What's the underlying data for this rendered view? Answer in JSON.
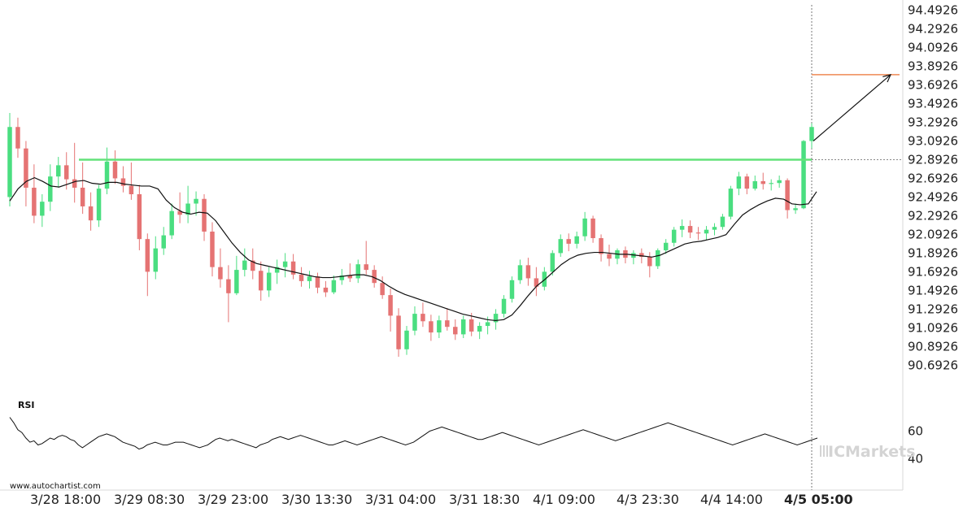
{
  "chart_data": [
    {
      "type": "candlestick",
      "title": "",
      "y_ticks": [
        "94.4926",
        "94.2926",
        "94.0926",
        "93.8926",
        "93.6926",
        "93.4926",
        "93.2926",
        "93.0926",
        "92.8926",
        "92.6926",
        "92.4926",
        "92.2926",
        "92.0926",
        "91.8926",
        "91.6926",
        "91.4926",
        "91.2926",
        "91.0926",
        "90.8926",
        "90.6926"
      ],
      "ylim": [
        90.53,
        94.55
      ],
      "x_ticks": [
        "3/28 18:00",
        "3/29 08:30",
        "3/29 23:00",
        "3/30 13:30",
        "3/31 04:00",
        "3/31 18:30",
        "4/1 09:00",
        "4/3 23:30",
        "4/4 14:00",
        "4/5 05:00"
      ],
      "candles": [
        [
          92.4926,
          93.3926,
          92.3926,
          93.2426
        ],
        [
          93.2426,
          93.3426,
          92.9126,
          93.0126
        ],
        [
          93.0126,
          93.0926,
          92.3926,
          92.5926
        ],
        [
          92.5926,
          92.8426,
          92.2126,
          92.2926
        ],
        [
          92.2926,
          92.5226,
          92.1726,
          92.4426
        ],
        [
          92.4426,
          92.8426,
          92.3426,
          92.7126
        ],
        [
          92.7126,
          92.9226,
          92.5926,
          92.8326
        ],
        [
          92.8326,
          92.9726,
          92.5726,
          92.6826
        ],
        [
          92.6826,
          93.0726,
          92.4326,
          92.5926
        ],
        [
          92.5926,
          92.8626,
          92.3126,
          92.3926
        ],
        [
          92.3926,
          92.5426,
          92.1326,
          92.2426
        ],
        [
          92.2426,
          92.6226,
          92.1726,
          92.5826
        ],
        [
          92.5826,
          93.0226,
          92.5226,
          92.8726
        ],
        [
          92.8726,
          92.9926,
          92.6326,
          92.6926
        ],
        [
          92.6926,
          92.8226,
          92.5426,
          92.6126
        ],
        [
          92.6126,
          92.8626,
          92.4626,
          92.5226
        ],
        [
          92.5226,
          92.6226,
          91.9226,
          92.0426
        ],
        [
          92.0426,
          92.1026,
          91.4326,
          91.6926
        ],
        [
          91.6926,
          92.0726,
          91.6126,
          91.9426
        ],
        [
          91.9426,
          92.1726,
          91.8726,
          92.0826
        ],
        [
          92.0826,
          92.4226,
          92.0426,
          92.3426
        ],
        [
          92.3426,
          92.5426,
          92.2126,
          92.3026
        ],
        [
          92.3026,
          92.6126,
          92.2126,
          92.4226
        ],
        [
          92.4226,
          92.5526,
          92.2926,
          92.4726
        ],
        [
          92.4726,
          92.5226,
          92.0226,
          92.1226
        ],
        [
          92.1226,
          92.2226,
          91.6426,
          91.7426
        ],
        [
          91.7426,
          91.9426,
          91.5226,
          91.6126
        ],
        [
          91.6126,
          91.7626,
          91.1526,
          91.4626
        ],
        [
          91.4626,
          91.8626,
          91.4426,
          91.7126
        ],
        [
          91.7126,
          91.9426,
          91.6426,
          91.8126
        ],
        [
          91.8126,
          91.9426,
          91.6126,
          91.7026
        ],
        [
          91.7026,
          91.8026,
          91.3826,
          91.4926
        ],
        [
          91.4926,
          91.7426,
          91.4226,
          91.6826
        ],
        [
          91.6826,
          91.8226,
          91.5626,
          91.7426
        ],
        [
          91.7426,
          91.8926,
          91.6326,
          91.8026
        ],
        [
          91.8026,
          91.8826,
          91.6126,
          91.6626
        ],
        [
          91.6626,
          91.7426,
          91.5326,
          91.5926
        ],
        [
          91.5926,
          91.7026,
          91.5126,
          91.6426
        ],
        [
          91.6426,
          91.6826,
          91.4626,
          91.5226
        ],
        [
          91.5226,
          91.5926,
          91.4226,
          91.4726
        ],
        [
          91.4726,
          91.6526,
          91.4526,
          91.6026
        ],
        [
          91.6026,
          91.7226,
          91.5526,
          91.6526
        ],
        [
          91.6526,
          91.7826,
          91.5826,
          91.6226
        ],
        [
          91.6226,
          91.8226,
          91.5726,
          91.7726
        ],
        [
          91.7726,
          92.0226,
          91.6626,
          91.7126
        ],
        [
          91.7126,
          91.7626,
          91.5226,
          91.5726
        ],
        [
          91.5726,
          91.6426,
          91.4026,
          91.4426
        ],
        [
          91.4426,
          91.5126,
          91.0526,
          91.2226
        ],
        [
          91.2226,
          91.3026,
          90.7826,
          90.8626
        ],
        [
          90.8626,
          91.1126,
          90.8026,
          91.0626
        ],
        [
          91.0626,
          91.3226,
          91.0126,
          91.2426
        ],
        [
          91.2426,
          91.3626,
          91.1026,
          91.1626
        ],
        [
          91.1626,
          91.2326,
          90.9526,
          91.0426
        ],
        [
          91.0426,
          91.2226,
          90.9826,
          91.1726
        ],
        [
          91.1726,
          91.3026,
          91.0626,
          91.1026
        ],
        [
          91.1026,
          91.1826,
          90.9626,
          91.0226
        ],
        [
          91.0226,
          91.2226,
          90.9826,
          91.1826
        ],
        [
          91.1826,
          91.2526,
          91.0026,
          91.0526
        ],
        [
          91.0526,
          91.1526,
          90.9726,
          91.1126
        ],
        [
          91.1126,
          91.2126,
          91.0226,
          91.1526
        ],
        [
          91.1526,
          91.2926,
          91.0726,
          91.2426
        ],
        [
          91.2426,
          91.4426,
          91.2026,
          91.4026
        ],
        [
          91.4026,
          91.6426,
          91.3626,
          91.6026
        ],
        [
          91.6026,
          91.8226,
          91.5626,
          91.7626
        ],
        [
          91.7626,
          91.8426,
          91.5426,
          91.6226
        ],
        [
          91.6226,
          91.7426,
          91.4326,
          91.5326
        ],
        [
          91.5326,
          91.7426,
          91.4926,
          91.6926
        ],
        [
          91.6926,
          91.9226,
          91.6526,
          91.8926
        ],
        [
          91.8926,
          92.0926,
          91.8526,
          92.0426
        ],
        [
          92.0426,
          92.1026,
          91.9126,
          91.9926
        ],
        [
          91.9926,
          92.1226,
          91.9426,
          92.0726
        ],
        [
          92.0726,
          92.3326,
          92.0226,
          92.2626
        ],
        [
          92.2626,
          92.2926,
          92.0026,
          92.0526
        ],
        [
          92.0526,
          92.0926,
          91.8026,
          91.8826
        ],
        [
          91.8826,
          91.9826,
          91.7526,
          91.8326
        ],
        [
          91.8326,
          91.9426,
          91.7726,
          91.9226
        ],
        [
          91.9226,
          91.9626,
          91.7826,
          91.8426
        ],
        [
          91.8426,
          91.9226,
          91.7726,
          91.8926
        ],
        [
          91.8926,
          91.9426,
          91.7826,
          91.8526
        ],
        [
          91.8526,
          91.9026,
          91.6326,
          91.7526
        ],
        [
          91.7526,
          91.9426,
          91.7226,
          91.9226
        ],
        [
          91.9226,
          92.0426,
          91.8826,
          92.0026
        ],
        [
          92.0026,
          92.1726,
          91.9626,
          92.1426
        ],
        [
          92.1426,
          92.2526,
          92.0626,
          92.1826
        ],
        [
          92.1826,
          92.2426,
          92.0526,
          92.1126
        ],
        [
          92.1126,
          92.1726,
          92.0326,
          92.1026
        ],
        [
          92.1026,
          92.1826,
          92.0326,
          92.1426
        ],
        [
          92.1426,
          92.2126,
          92.0826,
          92.1726
        ],
        [
          92.1726,
          92.3126,
          92.1426,
          92.2826
        ],
        [
          92.2826,
          92.6126,
          92.2526,
          92.5826
        ],
        [
          92.5826,
          92.7626,
          92.5126,
          92.7126
        ],
        [
          92.7126,
          92.7426,
          92.5226,
          92.5826
        ],
        [
          92.5826,
          92.7226,
          92.5626,
          92.6626
        ],
        [
          92.6626,
          92.7526,
          92.5726,
          92.6326
        ],
        [
          92.6326,
          92.6826,
          92.5626,
          92.6426
        ],
        [
          92.6426,
          92.7226,
          92.5926,
          92.6726
        ],
        [
          92.6726,
          92.6926,
          92.2626,
          92.3526
        ],
        [
          92.3526,
          92.4226,
          92.3126,
          92.3726
        ],
        [
          92.3726,
          93.1026,
          92.3626,
          93.0926
        ],
        [
          93.0926,
          93.2826,
          93.0126,
          93.2426
        ]
      ],
      "moving_average": [
        92.45,
        92.58,
        92.66,
        92.7,
        92.66,
        92.61,
        92.6,
        92.63,
        92.66,
        92.67,
        92.64,
        92.63,
        92.65,
        92.65,
        92.63,
        92.62,
        92.61,
        92.61,
        92.58,
        92.46,
        92.38,
        92.33,
        92.31,
        92.33,
        92.32,
        92.24,
        92.12,
        92.0,
        91.9,
        91.82,
        91.78,
        91.76,
        91.74,
        91.72,
        91.7,
        91.68,
        91.66,
        91.64,
        91.63,
        91.63,
        91.64,
        91.65,
        91.66,
        91.66,
        91.64,
        91.6,
        91.54,
        91.49,
        91.45,
        91.42,
        91.39,
        91.36,
        91.33,
        91.3,
        91.27,
        91.24,
        91.22,
        91.2,
        91.18,
        91.17,
        91.18,
        91.23,
        91.33,
        91.44,
        91.54,
        91.61,
        91.69,
        91.77,
        91.83,
        91.87,
        91.89,
        91.9,
        91.9,
        91.89,
        91.88,
        91.88,
        91.87,
        91.86,
        91.85,
        91.87,
        91.91,
        91.95,
        91.99,
        92.01,
        92.02,
        92.04,
        92.06,
        92.09,
        92.2,
        92.3,
        92.36,
        92.41,
        92.45,
        92.48,
        92.47,
        92.42,
        92.41,
        92.42,
        92.55
      ],
      "resistance_level": 92.8926,
      "target_level": 93.8026,
      "projection_start": 93.0926,
      "projection_end": 93.8026
    },
    {
      "type": "line",
      "title": "RSI",
      "y_ticks": [
        "60",
        "40"
      ],
      "ylim": [
        25,
        75
      ],
      "values": [
        70,
        66,
        61,
        59,
        55,
        52,
        53,
        50,
        51,
        53,
        55,
        54,
        56,
        57,
        56,
        54,
        53,
        50,
        48,
        50,
        52,
        54,
        56,
        57,
        58,
        57,
        56,
        54,
        52,
        51,
        50,
        49,
        47,
        48,
        50,
        51,
        52,
        51,
        50,
        50,
        51,
        52,
        52,
        52,
        51,
        50,
        49,
        48,
        49,
        50,
        52,
        54,
        55,
        54,
        53,
        54,
        53,
        52,
        51,
        50,
        49,
        48,
        50,
        51,
        52,
        54,
        55,
        56,
        55,
        54,
        55,
        56,
        57,
        56,
        55,
        54,
        53,
        52,
        51,
        50,
        50,
        51,
        52,
        53,
        52,
        51,
        50,
        51,
        52,
        53,
        54,
        55,
        56,
        55,
        54,
        53,
        52,
        51,
        50,
        51,
        52,
        54,
        56,
        58,
        60,
        61,
        62,
        63,
        62,
        61,
        60,
        59,
        58,
        57,
        56,
        55,
        54,
        54,
        55,
        56,
        57,
        58,
        59,
        58,
        57,
        56,
        55,
        54,
        53,
        52,
        51,
        50,
        51,
        52,
        53,
        54,
        55,
        56,
        57,
        58,
        59,
        60,
        61,
        60,
        59,
        58,
        57,
        56,
        55,
        54,
        53,
        54,
        55,
        56,
        57,
        58,
        59,
        60,
        61,
        62,
        63,
        64,
        65,
        66,
        65,
        64,
        63,
        62,
        61,
        60,
        59,
        58,
        57,
        56,
        55,
        54,
        53,
        52,
        51,
        50,
        51,
        52,
        53,
        54,
        55,
        56,
        57,
        58,
        57,
        56,
        55,
        54,
        53,
        52,
        51,
        50,
        51,
        52,
        53,
        54,
        55
      ]
    }
  ],
  "labels": {
    "watermark": "www.autochartist.com",
    "brand": "ICMarkets",
    "rsi": "RSI"
  },
  "colors": {
    "bullish": "#4ade80",
    "bearish": "#e57373",
    "resistance": "#63e27a",
    "target": "#ef8a55",
    "ma": "#111111",
    "axis": "#c7c7c7"
  }
}
